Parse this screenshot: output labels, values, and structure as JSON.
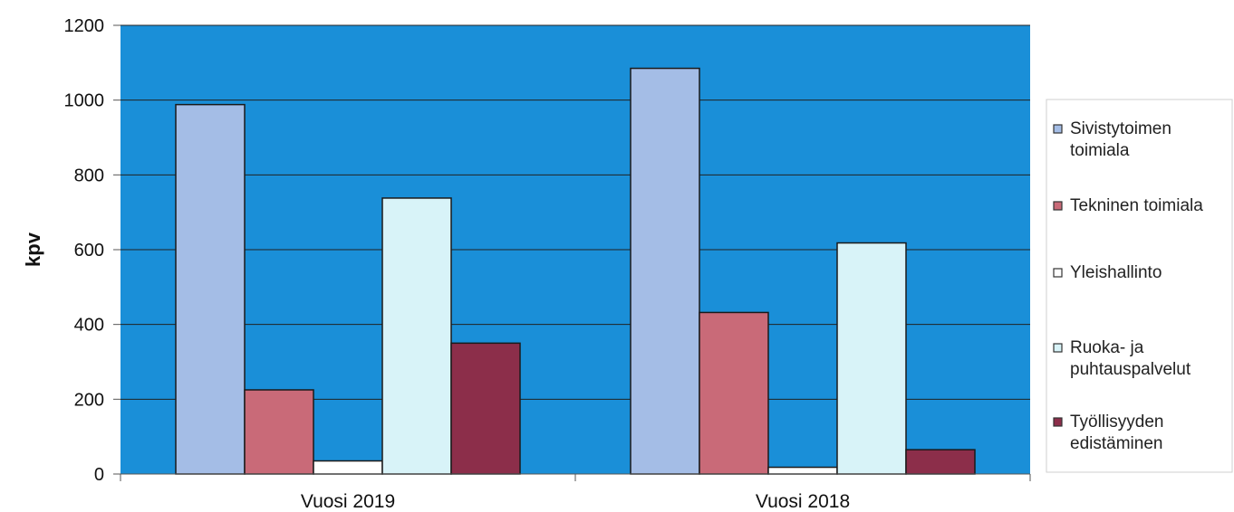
{
  "chart_data": {
    "type": "bar",
    "title": "",
    "xlabel": "",
    "ylabel": "kpv",
    "ylim": [
      0,
      1200
    ],
    "yticks": [
      0,
      200,
      400,
      600,
      800,
      1000,
      1200
    ],
    "categories": [
      "Vuosi 2019",
      "Vuosi 2018"
    ],
    "grid": true,
    "legend_position": "right",
    "plot_background": "#1a8fd8",
    "series": [
      {
        "name": "Sivistytoimen toimiala",
        "legend_lines": [
          "Sivistytoimen",
          "toimiala"
        ],
        "color": "#a4bde6",
        "values": [
          988,
          1085
        ]
      },
      {
        "name": "Tekninen toimiala",
        "legend_lines": [
          "Tekninen toimiala"
        ],
        "color": "#c96a78",
        "values": [
          225,
          432
        ]
      },
      {
        "name": "Yleishallinto",
        "legend_lines": [
          "Yleishallinto"
        ],
        "color": "#ffffff",
        "values": [
          35,
          18
        ]
      },
      {
        "name": "Ruoka- ja puhtauspalvelut",
        "legend_lines": [
          "Ruoka- ja",
          "puhtauspalvelut"
        ],
        "color": "#d8f3f8",
        "values": [
          738,
          618
        ]
      },
      {
        "name": "Työllisyyden edistäminen",
        "legend_lines": [
          "Työllisyyden",
          "edistäminen"
        ],
        "color": "#8c2e4a",
        "values": [
          350,
          65
        ]
      }
    ]
  }
}
